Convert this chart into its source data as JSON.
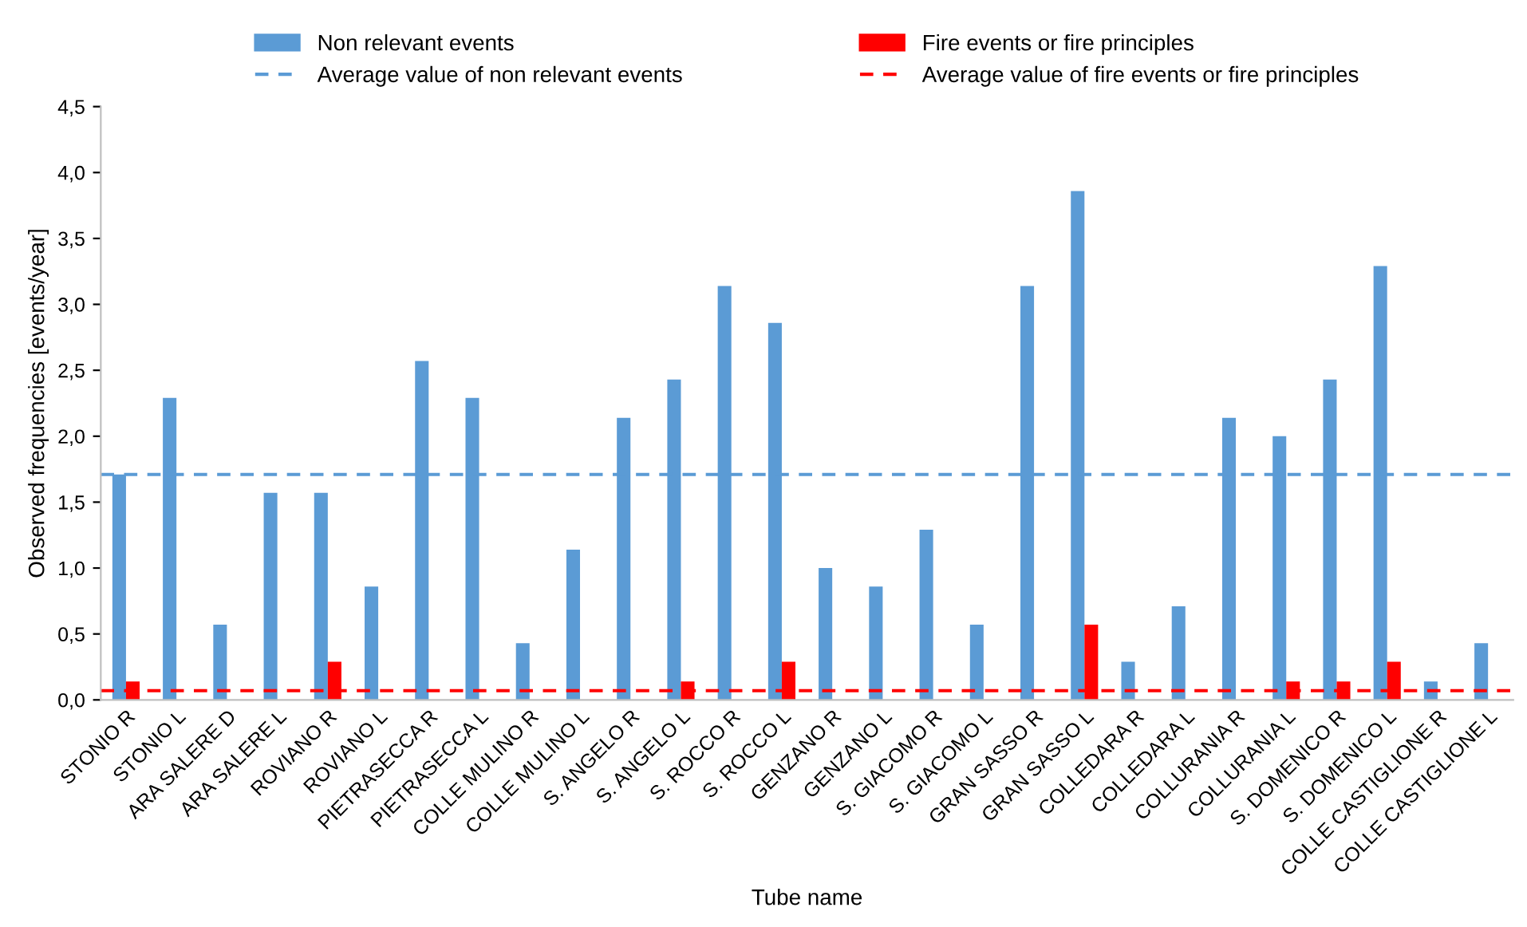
{
  "chart_data": {
    "type": "bar",
    "xlabel": "Tube name",
    "ylabel": "Observed frequencies [events/year]",
    "categories": [
      "STONIO R",
      "STONIO L",
      "ARA SALERE D",
      "ARA SALERE L",
      "ROVIANO R",
      "ROVIANO L",
      "PIETRASECCA R",
      "PIETRASECCA L",
      "COLLE MULINO R",
      "COLLE MULINO L",
      "S. ANGELO R",
      "S. ANGELO L",
      "S. ROCCO R",
      "S. ROCCO L",
      "GENZANO R",
      "GENZANO L",
      "S. GIACOMO R",
      "S. GIACOMO L",
      "GRAN SASSO R",
      "GRAN SASSO L",
      "COLLEDARA R",
      "COLLEDARA L",
      "COLLURANIA R",
      "COLLURANIA L",
      "S. DOMENICO R",
      "S. DOMENICO L",
      "COLLE CASTIGLIONE R",
      "COLLE CASTIGLIONE L"
    ],
    "series": [
      {
        "name": "Non relevant events",
        "color": "#5b9bd5",
        "values": [
          1.71,
          2.29,
          0.57,
          1.57,
          1.57,
          0.86,
          2.57,
          2.29,
          0.43,
          1.14,
          2.14,
          2.43,
          3.14,
          2.86,
          1.0,
          0.86,
          1.29,
          0.57,
          3.14,
          3.86,
          0.29,
          0.71,
          2.14,
          2.0,
          2.43,
          3.29,
          0.14,
          0.43
        ]
      },
      {
        "name": "Fire events or fire principles",
        "color": "#ff0000",
        "values": [
          0.14,
          0,
          0,
          0,
          0.29,
          0,
          0,
          0,
          0,
          0,
          0,
          0.14,
          0,
          0.29,
          0,
          0,
          0,
          0,
          0,
          0.57,
          0,
          0,
          0,
          0.14,
          0.14,
          0.29,
          0,
          0
        ]
      }
    ],
    "ref_lines": [
      {
        "axis": "y",
        "value": 1.71,
        "label": "Average value of non relevant events",
        "color": "#5b9bd5",
        "line_style": "dashed"
      },
      {
        "axis": "y",
        "value": 0.07,
        "label": "Average value of fire events or fire principles",
        "color": "#ff0000",
        "line_style": "dashed"
      }
    ],
    "ylim": [
      0,
      4.5
    ],
    "yticks": [
      {
        "value": 0,
        "label": "0,0"
      },
      {
        "value": 0.5,
        "label": "0,5"
      },
      {
        "value": 1,
        "label": "1,0"
      },
      {
        "value": 1.5,
        "label": "1,5"
      },
      {
        "value": 2,
        "label": "2,0"
      },
      {
        "value": 2.5,
        "label": "2,5"
      },
      {
        "value": 3,
        "label": "3,0"
      },
      {
        "value": 3.5,
        "label": "3,5"
      },
      {
        "value": 4,
        "label": "4,0"
      },
      {
        "value": 4.5,
        "label": "4,5"
      }
    ],
    "grid": false,
    "legend": "top"
  }
}
